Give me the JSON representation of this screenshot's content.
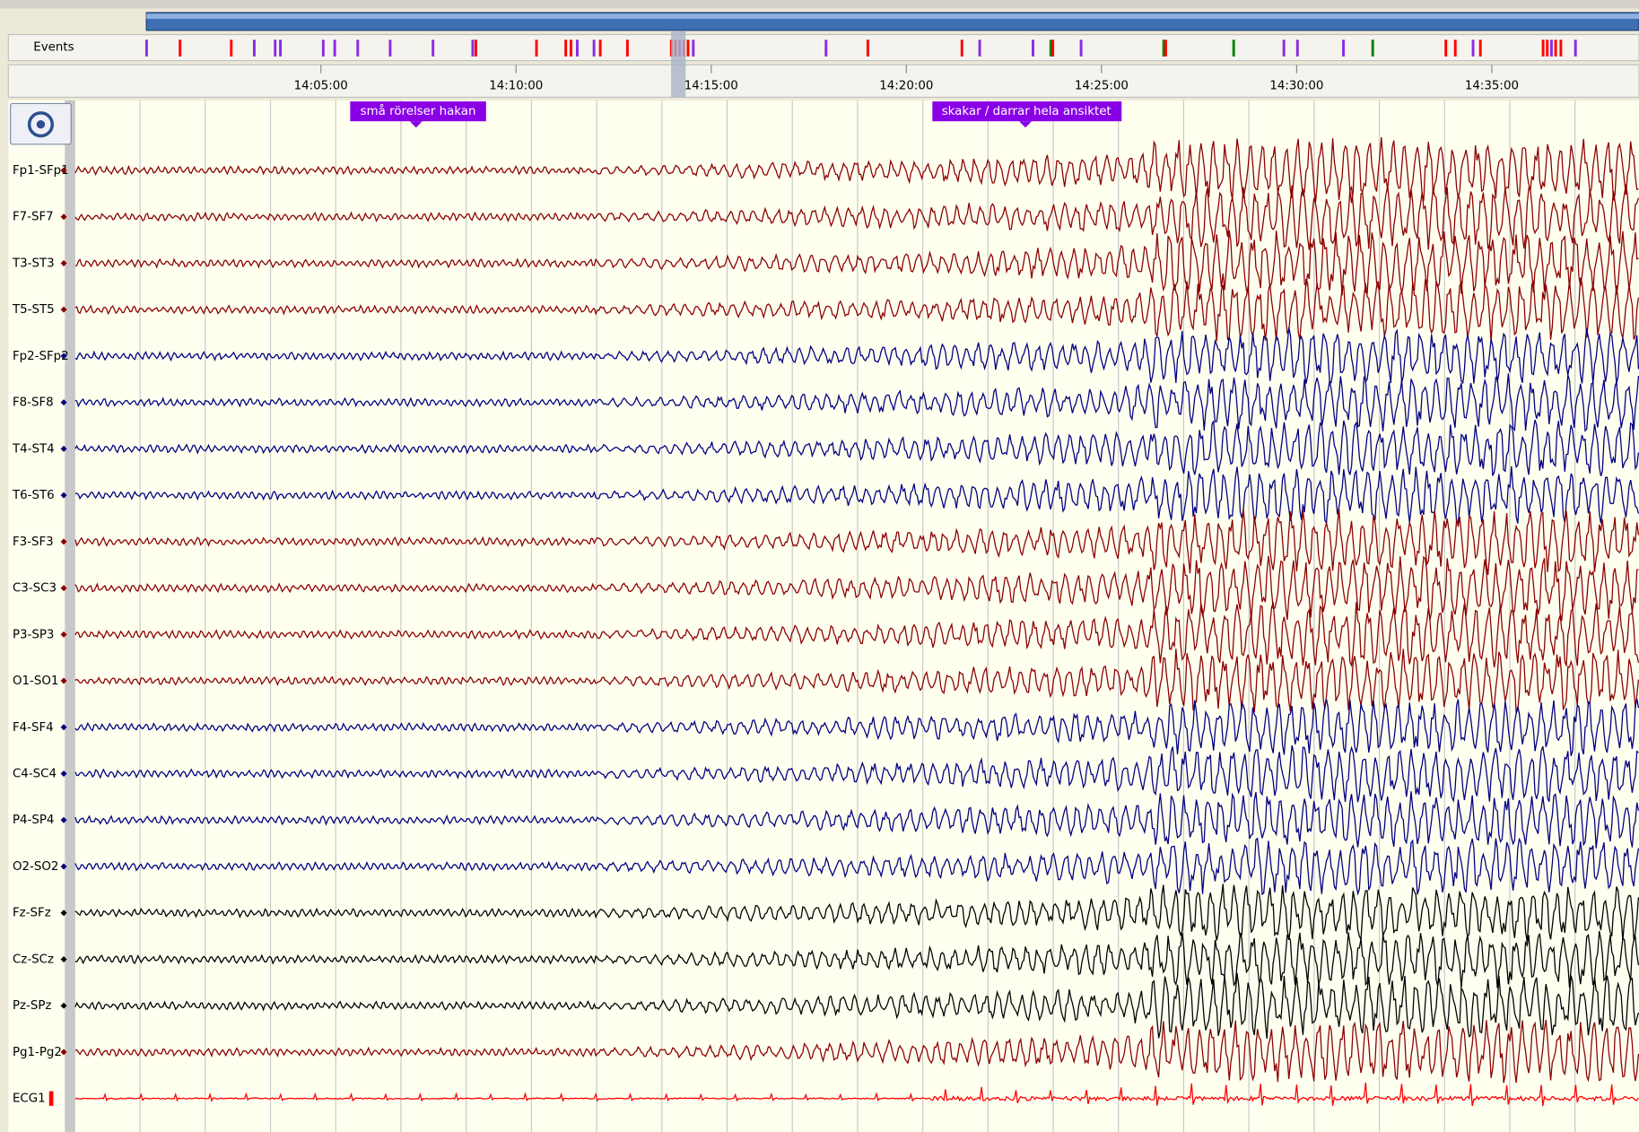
{
  "toolbar": {
    "events_label": "Events"
  },
  "time_axis": {
    "labels": [
      "14:05:00",
      "14:10:00",
      "14:15:00",
      "14:20:00",
      "14:25:00",
      "14:30:00",
      "14:35:00"
    ]
  },
  "annotations": [
    {
      "text": "små rörelser hakan"
    },
    {
      "text": "skakar / darrar hela ansiktet"
    }
  ],
  "channels": [
    {
      "name": "Fp1-SFp1",
      "color": "#8b0000"
    },
    {
      "name": "F7-SF7",
      "color": "#8b0000"
    },
    {
      "name": "T3-ST3",
      "color": "#8b0000"
    },
    {
      "name": "T5-ST5",
      "color": "#8b0000"
    },
    {
      "name": "Fp2-SFp2",
      "color": "#000080"
    },
    {
      "name": "F8-SF8",
      "color": "#000080"
    },
    {
      "name": "T4-ST4",
      "color": "#000080"
    },
    {
      "name": "T6-ST6",
      "color": "#000080"
    },
    {
      "name": "F3-SF3",
      "color": "#8b0000"
    },
    {
      "name": "C3-SC3",
      "color": "#8b0000"
    },
    {
      "name": "P3-SP3",
      "color": "#8b0000"
    },
    {
      "name": "O1-SO1",
      "color": "#8b0000"
    },
    {
      "name": "F4-SF4",
      "color": "#000080"
    },
    {
      "name": "C4-SC4",
      "color": "#000080"
    },
    {
      "name": "P4-SP4",
      "color": "#000080"
    },
    {
      "name": "O2-SO2",
      "color": "#000080"
    },
    {
      "name": "Fz-SFz",
      "color": "#000000"
    },
    {
      "name": "Cz-SCz",
      "color": "#000000"
    },
    {
      "name": "Pz-SPz",
      "color": "#000000"
    },
    {
      "name": "Pg1-Pg2",
      "color": "#8b0000"
    },
    {
      "name": "ECG1",
      "color": "#ff0000"
    }
  ]
}
